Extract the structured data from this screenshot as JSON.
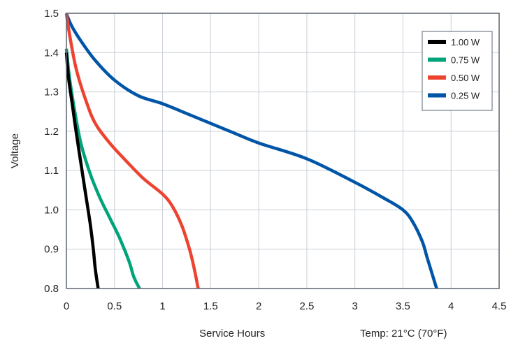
{
  "chart_data": {
    "type": "line",
    "xlabel": "Service Hours",
    "ylabel": "Voltage",
    "note": "Temp: 21°C (70°F)",
    "xlim": [
      0,
      4.5
    ],
    "ylim": [
      0.8,
      1.5
    ],
    "xticks": [
      "0",
      "0.5",
      "1",
      "1.5",
      "2",
      "2.5",
      "3",
      "3.5",
      "4",
      "4.5"
    ],
    "yticks": [
      "0.8",
      "0.9",
      "1.0",
      "1.1",
      "1.2",
      "1.3",
      "1.4",
      "1.5"
    ],
    "grid": true,
    "legend_position": "top-right",
    "series": [
      {
        "name": "1.00 W",
        "color": "#000000",
        "points": [
          [
            0,
            1.4
          ],
          [
            0.02,
            1.34
          ],
          [
            0.06,
            1.27
          ],
          [
            0.1,
            1.2
          ],
          [
            0.15,
            1.12
          ],
          [
            0.2,
            1.04
          ],
          [
            0.25,
            0.96
          ],
          [
            0.28,
            0.9
          ],
          [
            0.3,
            0.85
          ],
          [
            0.33,
            0.8
          ]
        ]
      },
      {
        "name": "0.75 W",
        "color": "#00a37a",
        "points": [
          [
            0,
            1.41
          ],
          [
            0.03,
            1.34
          ],
          [
            0.08,
            1.26
          ],
          [
            0.15,
            1.17
          ],
          [
            0.25,
            1.09
          ],
          [
            0.35,
            1.03
          ],
          [
            0.45,
            0.98
          ],
          [
            0.55,
            0.93
          ],
          [
            0.65,
            0.87
          ],
          [
            0.7,
            0.83
          ],
          [
            0.76,
            0.8
          ]
        ]
      },
      {
        "name": "0.50 W",
        "color": "#ed4331",
        "points": [
          [
            0,
            1.5
          ],
          [
            0.03,
            1.45
          ],
          [
            0.1,
            1.36
          ],
          [
            0.2,
            1.28
          ],
          [
            0.3,
            1.22
          ],
          [
            0.45,
            1.17
          ],
          [
            0.6,
            1.13
          ],
          [
            0.8,
            1.08
          ],
          [
            1.0,
            1.04
          ],
          [
            1.1,
            1.01
          ],
          [
            1.2,
            0.96
          ],
          [
            1.28,
            0.9
          ],
          [
            1.33,
            0.85
          ],
          [
            1.37,
            0.8
          ]
        ]
      },
      {
        "name": "0.25 W",
        "color": "#0055a6",
        "points": [
          [
            0,
            1.5
          ],
          [
            0.05,
            1.47
          ],
          [
            0.15,
            1.43
          ],
          [
            0.3,
            1.38
          ],
          [
            0.5,
            1.33
          ],
          [
            0.75,
            1.29
          ],
          [
            1.0,
            1.27
          ],
          [
            1.3,
            1.24
          ],
          [
            1.7,
            1.2
          ],
          [
            2.0,
            1.17
          ],
          [
            2.5,
            1.13
          ],
          [
            3.0,
            1.07
          ],
          [
            3.3,
            1.03
          ],
          [
            3.5,
            1.0
          ],
          [
            3.6,
            0.97
          ],
          [
            3.7,
            0.92
          ],
          [
            3.75,
            0.88
          ],
          [
            3.8,
            0.84
          ],
          [
            3.85,
            0.8
          ]
        ]
      }
    ]
  }
}
